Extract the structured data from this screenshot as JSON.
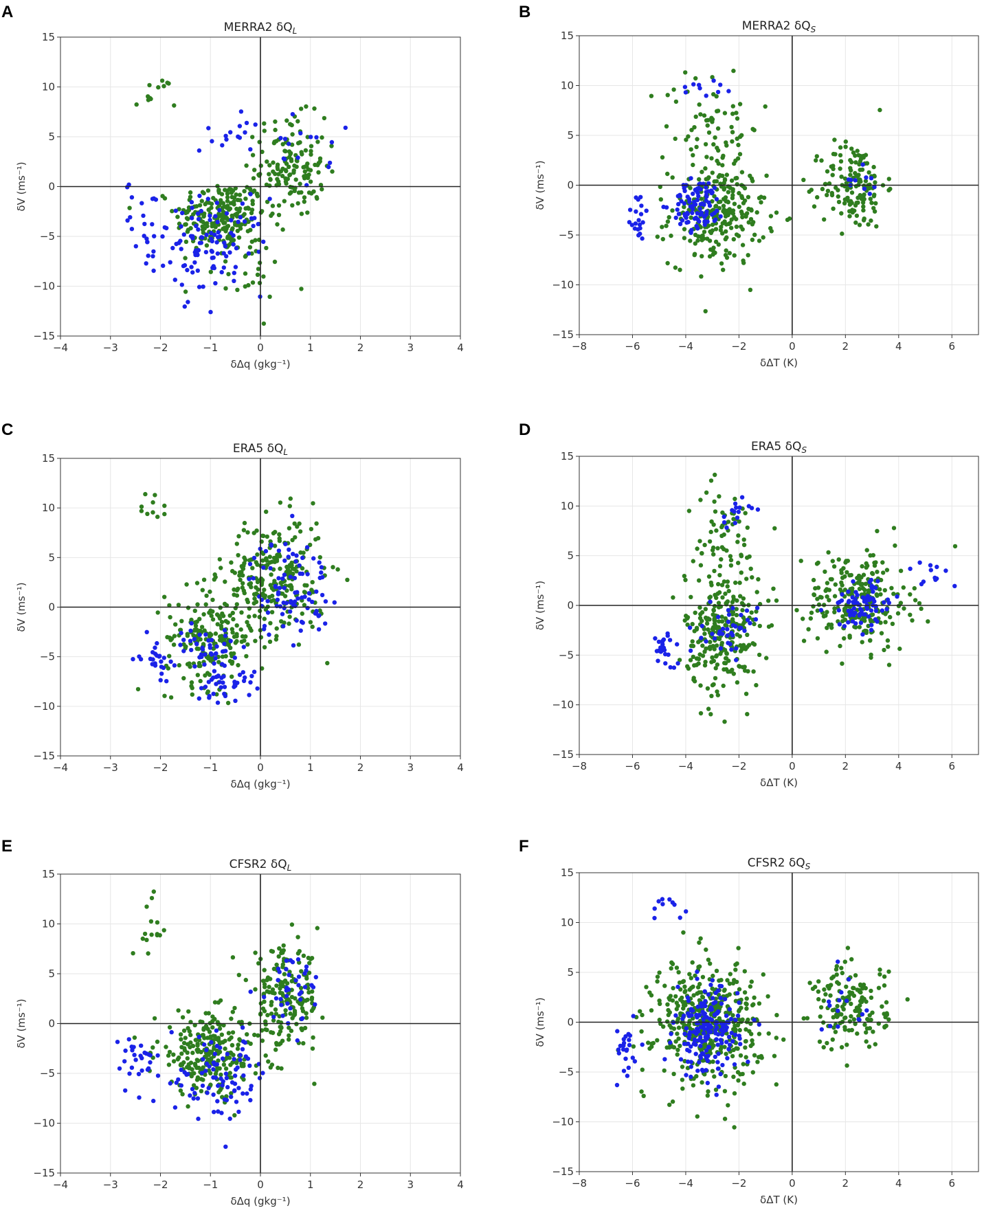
{
  "colors": {
    "series_blue": "#1a22e8",
    "series_green": "#2f7d1f",
    "grid": "#e6e6e6",
    "axis": "#000000"
  },
  "chart_data": [
    {
      "panel": "A",
      "type": "scatter",
      "title": "MERRA2 δQ",
      "title_sub": "L",
      "xlabel": "δΔq (gkg⁻¹)",
      "ylabel": "δV (ms⁻¹)",
      "xlim": [
        -4,
        4
      ],
      "ylim": [
        -15,
        15
      ],
      "xticks": [
        -4,
        -3,
        -2,
        -1,
        0,
        1,
        2,
        3,
        4
      ],
      "yticks": [
        -15,
        -10,
        -5,
        0,
        5,
        10,
        15
      ],
      "grid": true,
      "series": [
        {
          "name": "green",
          "color": "#2f7d1f",
          "clusters": [
            {
              "cx": -0.8,
              "cy": -3,
              "sx": 0.45,
              "sy": 1.8,
              "n": 220
            },
            {
              "cx": 0.6,
              "cy": 2,
              "sx": 0.35,
              "sy": 2.5,
              "n": 150
            },
            {
              "cx": -2.1,
              "cy": 9,
              "sx": 0.2,
              "sy": 1,
              "n": 12
            },
            {
              "cx": -0.3,
              "cy": -8,
              "sx": 0.4,
              "sy": 2,
              "n": 30
            }
          ]
        },
        {
          "name": "blue",
          "color": "#1a22e8",
          "clusters": [
            {
              "cx": -1,
              "cy": -6,
              "sx": 0.55,
              "sy": 2.4,
              "n": 110
            },
            {
              "cx": -2.3,
              "cy": -3,
              "sx": 0.2,
              "sy": 1.8,
              "n": 20
            },
            {
              "cx": 0.8,
              "cy": 3.5,
              "sx": 0.3,
              "sy": 1.8,
              "n": 15
            },
            {
              "cx": -0.6,
              "cy": 5.5,
              "sx": 0.3,
              "sy": 1,
              "n": 15
            }
          ]
        }
      ]
    },
    {
      "panel": "B",
      "type": "scatter",
      "title": "MERRA2 δQ",
      "title_sub": "S",
      "xlabel": "δΔT (K)",
      "ylabel": "δV (ms⁻¹)",
      "xlim": [
        -8,
        7
      ],
      "ylim": [
        -15,
        15
      ],
      "xticks": [
        -8,
        -6,
        -4,
        -2,
        0,
        2,
        4,
        6
      ],
      "yticks": [
        -15,
        -10,
        -5,
        0,
        5,
        10,
        15
      ],
      "grid": true,
      "series": [
        {
          "name": "green",
          "color": "#2f7d1f",
          "clusters": [
            {
              "cx": -2.8,
              "cy": -3,
              "sx": 0.9,
              "sy": 2.5,
              "n": 250
            },
            {
              "cx": -3,
              "cy": 6,
              "sx": 0.9,
              "sy": 3,
              "n": 70
            },
            {
              "cx": 2.3,
              "cy": 0,
              "sx": 0.6,
              "sy": 2.2,
              "n": 150
            }
          ]
        },
        {
          "name": "blue",
          "color": "#1a22e8",
          "clusters": [
            {
              "cx": -3.5,
              "cy": -2,
              "sx": 0.5,
              "sy": 1.3,
              "n": 90
            },
            {
              "cx": -5.8,
              "cy": -3,
              "sx": 0.2,
              "sy": 1.5,
              "n": 20
            },
            {
              "cx": -3.2,
              "cy": 10,
              "sx": 0.5,
              "sy": 0.5,
              "n": 10
            },
            {
              "cx": 2.8,
              "cy": 0.5,
              "sx": 0.3,
              "sy": 1,
              "n": 10
            }
          ]
        }
      ]
    },
    {
      "panel": "C",
      "type": "scatter",
      "title": "ERA5 δQ",
      "title_sub": "L",
      "xlabel": "δΔq (gkg⁻¹)",
      "ylabel": "δV (ms⁻¹)",
      "xlim": [
        -4,
        4
      ],
      "ylim": [
        -15,
        15
      ],
      "xticks": [
        -4,
        -3,
        -2,
        -1,
        0,
        1,
        2,
        3,
        4
      ],
      "yticks": [
        -15,
        -10,
        -5,
        0,
        5,
        10,
        15
      ],
      "grid": true,
      "series": [
        {
          "name": "green",
          "color": "#2f7d1f",
          "clusters": [
            {
              "cx": -1,
              "cy": -3,
              "sx": 0.45,
              "sy": 2.5,
              "n": 200
            },
            {
              "cx": 0.3,
              "cy": 3,
              "sx": 0.5,
              "sy": 3,
              "n": 250
            },
            {
              "cx": -2.1,
              "cy": 10,
              "sx": 0.15,
              "sy": 1,
              "n": 10
            }
          ]
        },
        {
          "name": "blue",
          "color": "#1a22e8",
          "clusters": [
            {
              "cx": -1.1,
              "cy": -4,
              "sx": 0.3,
              "sy": 1,
              "n": 40
            },
            {
              "cx": -0.7,
              "cy": -7.5,
              "sx": 0.3,
              "sy": 1,
              "n": 40
            },
            {
              "cx": -2.1,
              "cy": -5,
              "sx": 0.15,
              "sy": 1,
              "n": 25
            },
            {
              "cx": 0.6,
              "cy": 2,
              "sx": 0.4,
              "sy": 2.5,
              "n": 90
            }
          ]
        }
      ]
    },
    {
      "panel": "D",
      "type": "scatter",
      "title": "ERA5 δQ",
      "title_sub": "S",
      "xlabel": "δΔT (K)",
      "ylabel": "δV (ms⁻¹)",
      "xlim": [
        -8,
        7
      ],
      "ylim": [
        -15,
        15
      ],
      "xticks": [
        -8,
        -6,
        -4,
        -2,
        0,
        2,
        4,
        6
      ],
      "yticks": [
        -15,
        -10,
        -5,
        0,
        5,
        10,
        15
      ],
      "grid": true,
      "series": [
        {
          "name": "green",
          "color": "#2f7d1f",
          "clusters": [
            {
              "cx": -2.6,
              "cy": -3,
              "sx": 0.7,
              "sy": 3,
              "n": 250
            },
            {
              "cx": -2.6,
              "cy": 6,
              "sx": 0.7,
              "sy": 3,
              "n": 80
            },
            {
              "cx": 2.5,
              "cy": 0.5,
              "sx": 1,
              "sy": 2.5,
              "n": 250
            }
          ]
        },
        {
          "name": "blue",
          "color": "#1a22e8",
          "clusters": [
            {
              "cx": -4.8,
              "cy": -4.5,
              "sx": 0.2,
              "sy": 1,
              "n": 25
            },
            {
              "cx": -2.3,
              "cy": -2.5,
              "sx": 0.5,
              "sy": 1.2,
              "n": 40
            },
            {
              "cx": -2.2,
              "cy": 9.5,
              "sx": 0.3,
              "sy": 0.8,
              "n": 15
            },
            {
              "cx": 2.6,
              "cy": 0,
              "sx": 0.6,
              "sy": 1.2,
              "n": 80
            },
            {
              "cx": 5.2,
              "cy": 3,
              "sx": 0.5,
              "sy": 1,
              "n": 12
            }
          ]
        }
      ]
    },
    {
      "panel": "E",
      "type": "scatter",
      "title": "CFSR2 δQ",
      "title_sub": "L",
      "xlabel": "δΔq (gkg⁻¹)",
      "ylabel": "δV (ms⁻¹)",
      "xlim": [
        -4,
        4
      ],
      "ylim": [
        -15,
        15
      ],
      "xticks": [
        -4,
        -3,
        -2,
        -1,
        0,
        1,
        2,
        3,
        4
      ],
      "yticks": [
        -15,
        -10,
        -5,
        0,
        5,
        10,
        15
      ],
      "grid": true,
      "series": [
        {
          "name": "green",
          "color": "#2f7d1f",
          "clusters": [
            {
              "cx": -1,
              "cy": -3,
              "sx": 0.55,
              "sy": 2,
              "n": 250
            },
            {
              "cx": 0.5,
              "cy": 2.5,
              "sx": 0.35,
              "sy": 2.5,
              "n": 180
            },
            {
              "cx": -2.2,
              "cy": 9,
              "sx": 0.15,
              "sy": 2,
              "n": 15
            }
          ]
        },
        {
          "name": "blue",
          "color": "#1a22e8",
          "clusters": [
            {
              "cx": -2.5,
              "cy": -3.5,
              "sx": 0.2,
              "sy": 1.5,
              "n": 25
            },
            {
              "cx": -0.8,
              "cy": -5.5,
              "sx": 0.5,
              "sy": 2,
              "n": 90
            },
            {
              "cx": 0.6,
              "cy": 3.5,
              "sx": 0.35,
              "sy": 2,
              "n": 40
            }
          ]
        }
      ]
    },
    {
      "panel": "F",
      "type": "scatter",
      "title": "CFSR2 δQ",
      "title_sub": "S",
      "xlabel": "δΔT (K)",
      "ylabel": "δV (ms⁻¹)",
      "xlim": [
        -8,
        7
      ],
      "ylim": [
        -15,
        15
      ],
      "xticks": [
        -8,
        -6,
        -4,
        -2,
        0,
        2,
        4,
        6
      ],
      "yticks": [
        -15,
        -10,
        -5,
        0,
        5,
        10,
        15
      ],
      "grid": true,
      "series": [
        {
          "name": "green",
          "color": "#2f7d1f",
          "clusters": [
            {
              "cx": -3.2,
              "cy": 0,
              "sx": 1,
              "sy": 3,
              "n": 450
            },
            {
              "cx": 2.2,
              "cy": 1.5,
              "sx": 0.7,
              "sy": 2.2,
              "n": 150
            }
          ]
        },
        {
          "name": "blue",
          "color": "#1a22e8",
          "clusters": [
            {
              "cx": -3.2,
              "cy": -1,
              "sx": 0.6,
              "sy": 2.2,
              "n": 180
            },
            {
              "cx": -6.2,
              "cy": -2.5,
              "sx": 0.3,
              "sy": 1.5,
              "n": 25
            },
            {
              "cx": -4.6,
              "cy": 11,
              "sx": 0.4,
              "sy": 0.8,
              "n": 10
            },
            {
              "cx": 2,
              "cy": 2,
              "sx": 0.5,
              "sy": 1.5,
              "n": 15
            }
          ]
        }
      ]
    }
  ]
}
